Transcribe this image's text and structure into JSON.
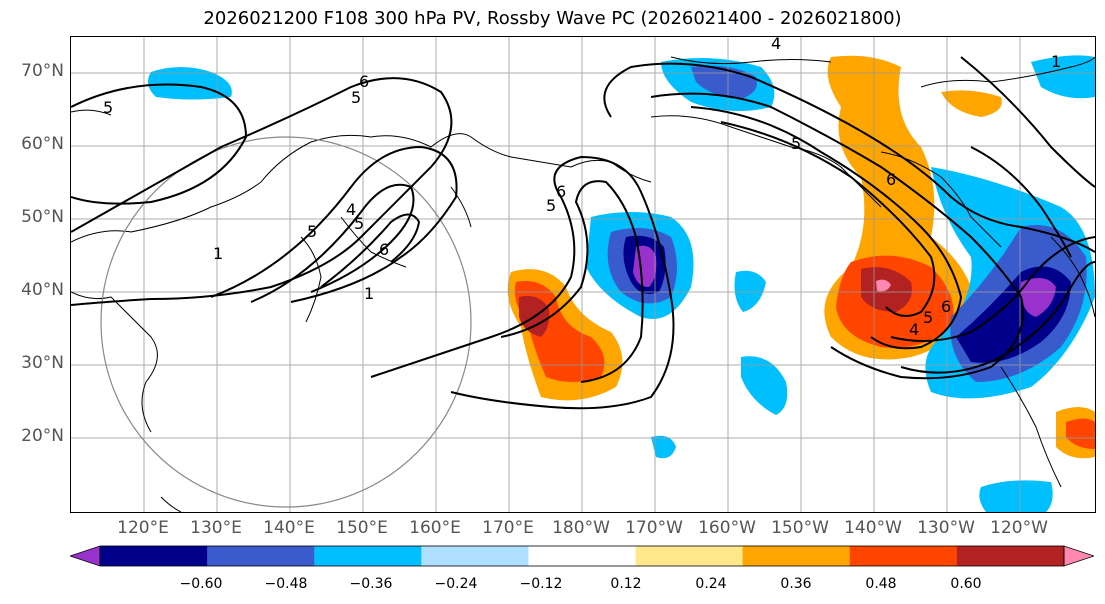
{
  "title": "2026021200 F108 300 hPa PV, Rossby Wave PC (2026021400 - 2026021800)",
  "lat_labels": [
    "70°N",
    "60°N",
    "50°N",
    "40°N",
    "30°N",
    "20°N"
  ],
  "lon_labels": [
    "120°E",
    "130°E",
    "140°E",
    "150°E",
    "160°E",
    "170°E",
    "180°W",
    "170°W",
    "160°W",
    "150°W",
    "140°W",
    "130°W",
    "120°W"
  ],
  "contour_labels": [
    "5",
    "6",
    "5",
    "4",
    "5",
    "1",
    "6",
    "5",
    "1",
    "6",
    "5",
    "4",
    "5",
    "6",
    "4",
    "5",
    "6",
    "1"
  ],
  "colorbar": {
    "ticks": [
      "−0.60",
      "−0.48",
      "−0.36",
      "−0.24",
      "−0.12",
      "0.12",
      "0.24",
      "0.36",
      "0.48",
      "0.60"
    ],
    "colors": [
      "#9932CC",
      "#00008B",
      "#3A5BCC",
      "#00BFFF",
      "#B0E0FF",
      "#FFFFFF",
      "#FFE88A",
      "#FFA500",
      "#FF4500",
      "#B22222",
      "#FF88B0"
    ]
  },
  "colors": {
    "lat_lon_text": "#555555",
    "contour": "#000000",
    "grid": "#999999"
  }
}
